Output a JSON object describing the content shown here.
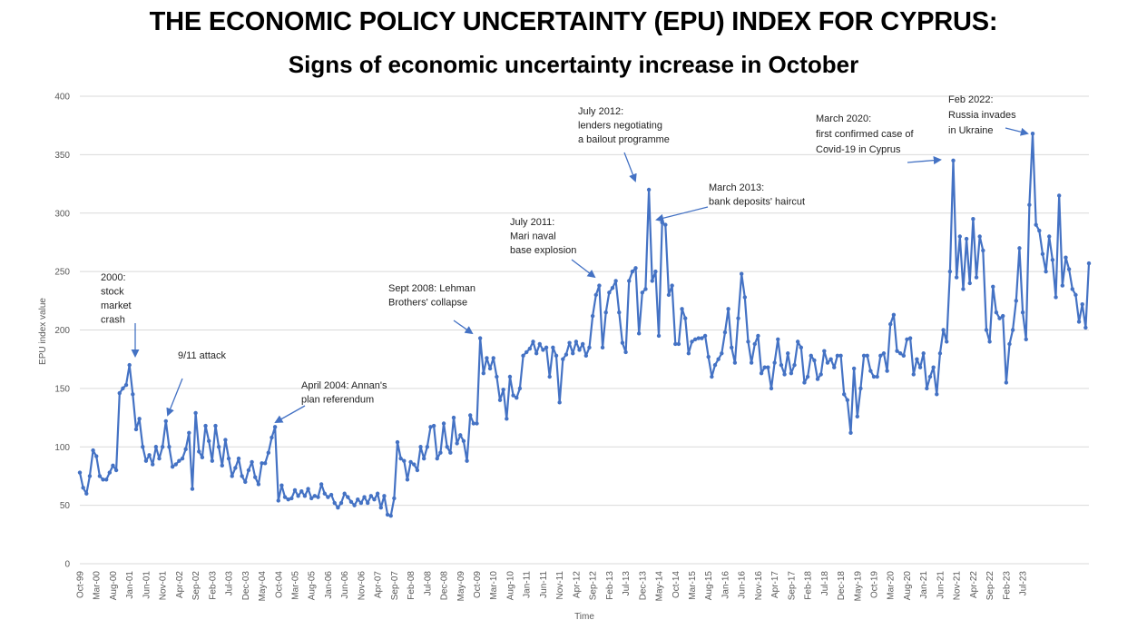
{
  "title": "THE ECONOMIC POLICY UNCERTAINTY (EPU) INDEX FOR CYPRUS:",
  "subtitle": "Signs of economic uncertainty increase in October",
  "chart_data": {
    "type": "line",
    "title": "THE ECONOMIC POLICY UNCERTAINTY (EPU) INDEX FOR CYPRUS:",
    "subtitle": "Signs of economic uncertainty increase in October",
    "xlabel": "Time",
    "ylabel": "EPU index value",
    "ylim": [
      0,
      400
    ],
    "yticks": [
      0,
      50,
      100,
      150,
      200,
      250,
      300,
      350,
      400
    ],
    "grid": true,
    "start_month": "Oct-99",
    "tick_labels": [
      "Oct-99",
      "Mar-00",
      "Aug-00",
      "Jan-01",
      "Jun-01",
      "Nov-01",
      "Apr-02",
      "Sep-02",
      "Feb-03",
      "Jul-03",
      "Dec-03",
      "May-04",
      "Oct-04",
      "Mar-05",
      "Aug-05",
      "Jan-06",
      "Jun-06",
      "Nov-06",
      "Apr-07",
      "Sep-07",
      "Feb-08",
      "Jul-08",
      "Dec-08",
      "May-09",
      "Oct-09",
      "Mar-10",
      "Aug-10",
      "Jan-11",
      "Jun-11",
      "Nov-11",
      "Apr-12",
      "Sep-12",
      "Feb-13",
      "Jul-13",
      "Dec-13",
      "May-14",
      "Oct-14",
      "Mar-15",
      "Aug-15",
      "Jan-16",
      "Jun-16",
      "Nov-16",
      "Apr-17",
      "Sep-17",
      "Feb-18",
      "Jul-18",
      "Dec-18",
      "May-19",
      "Oct-19",
      "Mar-20",
      "Aug-20",
      "Jan-21",
      "Jun-21",
      "Nov-21",
      "Apr-22",
      "Sep-22",
      "Feb-23",
      "Jul-23"
    ],
    "series": [
      {
        "name": "EPU index",
        "color": "#4472c4",
        "values": [
          78,
          65,
          60,
          75,
          97,
          92,
          75,
          72,
          72,
          78,
          84,
          80,
          146,
          150,
          153,
          170,
          145,
          115,
          124,
          100,
          88,
          93,
          85,
          100,
          90,
          100,
          122,
          100,
          83,
          85,
          88,
          90,
          98,
          112,
          64,
          129,
          96,
          91,
          118,
          105,
          88,
          118,
          100,
          84,
          106,
          90,
          75,
          82,
          90,
          75,
          70,
          80,
          87,
          74,
          68,
          86,
          86,
          95,
          108,
          117,
          54,
          67,
          57,
          55,
          56,
          63,
          58,
          62,
          58,
          64,
          56,
          58,
          57,
          68,
          60,
          57,
          59,
          52,
          48,
          52,
          60,
          57,
          53,
          50,
          55,
          52,
          57,
          52,
          58,
          55,
          60,
          48,
          58,
          42,
          41,
          56,
          104,
          90,
          88,
          72,
          87,
          85,
          80,
          100,
          90,
          100,
          117,
          118,
          90,
          95,
          120,
          100,
          95,
          125,
          103,
          110,
          105,
          88,
          127,
          120,
          120,
          193,
          163,
          176,
          167,
          176,
          160,
          140,
          149,
          124,
          160,
          144,
          142,
          150,
          178,
          181,
          184,
          190,
          180,
          188,
          183,
          185,
          160,
          185,
          178,
          138,
          175,
          179,
          189,
          180,
          190,
          183,
          188,
          178,
          185,
          212,
          230,
          238,
          185,
          215,
          232,
          236,
          242,
          215,
          189,
          181,
          242,
          250,
          253,
          197,
          232,
          235,
          320,
          242,
          250,
          195,
          292,
          290,
          230,
          238,
          188,
          188,
          218,
          210,
          180,
          190,
          192,
          193,
          193,
          195,
          177,
          160,
          170,
          175,
          180,
          198,
          218,
          185,
          172,
          210,
          248,
          228,
          190,
          172,
          188,
          195,
          163,
          168,
          168,
          150,
          172,
          192,
          170,
          162,
          180,
          163,
          170,
          190,
          185,
          155,
          160,
          178,
          174,
          158,
          162,
          182,
          172,
          175,
          168,
          178,
          178,
          145,
          140,
          112,
          167,
          126,
          150,
          178,
          178,
          165,
          160,
          160,
          178,
          180,
          165,
          205,
          213,
          182,
          180,
          178,
          192,
          193,
          162,
          175,
          168,
          180,
          150,
          160,
          168,
          145,
          180,
          200,
          190,
          250,
          345,
          245,
          280,
          235,
          278,
          240,
          295,
          245,
          280,
          268,
          200,
          190,
          237,
          215,
          210,
          212,
          155,
          188,
          200,
          225,
          270,
          215,
          192,
          307,
          368,
          290,
          285,
          265,
          250,
          280,
          260,
          228,
          315,
          238,
          262,
          252,
          235,
          230,
          207,
          222,
          202,
          257
        ]
      }
    ],
    "annotations": [
      {
        "lines": [
          "2000:",
          "stock",
          "market",
          "crash"
        ]
      },
      {
        "lines": [
          "9/11 attack"
        ]
      },
      {
        "lines": [
          "April 2004: Annan's",
          "plan referendum"
        ]
      },
      {
        "lines": [
          "Sept 2008: Lehman",
          "Brothers' collapse"
        ]
      },
      {
        "lines": [
          "July 2011:",
          "Mari naval",
          "base explosion"
        ]
      },
      {
        "lines": [
          "July 2012:",
          "lenders negotiating",
          "a bailout programme"
        ]
      },
      {
        "lines": [
          "March 2013:",
          "bank deposits' haircut"
        ]
      },
      {
        "lines": [
          "March 2020:",
          "first confirmed case of",
          "Covid-19 in Cyprus"
        ]
      },
      {
        "lines": [
          "Feb 2022:",
          "Russia invades",
          "in Ukraine"
        ]
      }
    ]
  }
}
